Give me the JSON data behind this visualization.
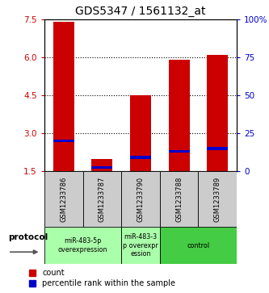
{
  "title": "GDS5347 / 1561132_at",
  "samples": [
    "GSM1233786",
    "GSM1233787",
    "GSM1233790",
    "GSM1233788",
    "GSM1233789"
  ],
  "red_values": [
    7.4,
    2.0,
    4.5,
    5.9,
    6.1
  ],
  "blue_values": [
    2.7,
    1.65,
    2.05,
    2.3,
    2.4
  ],
  "bar_bottom": 1.5,
  "ylim": [
    1.5,
    7.5
  ],
  "y_ticks_left": [
    1.5,
    3.0,
    4.5,
    6.0,
    7.5
  ],
  "y_ticks_right": [
    0,
    25,
    50,
    75,
    100
  ],
  "right_ylim": [
    0,
    100
  ],
  "bar_color_red": "#cc0000",
  "bar_color_blue": "#0000cc",
  "bar_width": 0.55,
  "group_defs": [
    {
      "indices": [
        0,
        1
      ],
      "label": "miR-483-5p\noverexpression",
      "color": "#aaffaa"
    },
    {
      "indices": [
        2
      ],
      "label": "miR-483-3\np overexpr\nession",
      "color": "#aaffaa"
    },
    {
      "indices": [
        3,
        4
      ],
      "label": "control",
      "color": "#44cc44"
    }
  ],
  "protocol_label": "protocol",
  "legend_red": "count",
  "legend_blue": "percentile rank within the sample",
  "sample_bg_color": "#cccccc",
  "title_fontsize": 10,
  "axis_color_left": "#cc0000",
  "axis_color_right": "#0000cc",
  "dotted_lines": [
    3.0,
    4.5,
    6.0
  ]
}
